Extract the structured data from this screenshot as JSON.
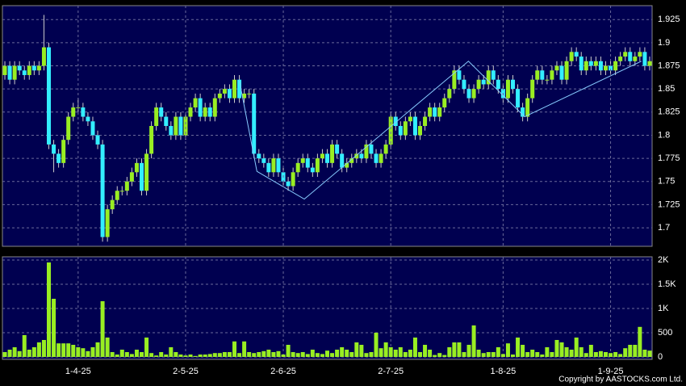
{
  "chart_data": [
    {
      "type": "candlestick",
      "up_color": "#99ee22",
      "down_color": "#33eeff",
      "ylim": [
        1.68,
        1.94
      ],
      "yticks": [
        1.7,
        1.725,
        1.75,
        1.775,
        1.8,
        1.825,
        1.85,
        1.875,
        1.9,
        1.925
      ],
      "grid": true,
      "open": [
        1.865,
        1.875,
        1.86,
        1.875,
        1.87,
        1.865,
        1.875,
        1.87,
        1.875,
        1.895,
        1.79,
        1.78,
        1.77,
        1.795,
        1.82,
        1.83,
        1.83,
        1.82,
        1.815,
        1.8,
        1.79,
        1.69,
        1.72,
        1.73,
        1.74,
        1.74,
        1.75,
        1.76,
        1.77,
        1.74,
        1.78,
        1.81,
        1.83,
        1.82,
        1.81,
        1.8,
        1.82,
        1.8,
        1.82,
        1.83,
        1.84,
        1.82,
        1.83,
        1.82,
        1.84,
        1.845,
        1.85,
        1.84,
        1.86,
        1.84,
        1.845,
        1.845,
        1.78,
        1.775,
        1.77,
        1.76,
        1.775,
        1.76,
        1.75,
        1.745,
        1.76,
        1.77,
        1.775,
        1.765,
        1.76,
        1.775,
        1.78,
        1.77,
        1.79,
        1.78,
        1.765,
        1.77,
        1.775,
        1.78,
        1.775,
        1.79,
        1.78,
        1.77,
        1.78,
        1.79,
        1.82,
        1.81,
        1.8,
        1.815,
        1.82,
        1.8,
        1.81,
        1.82,
        1.83,
        1.82,
        1.83,
        1.84,
        1.85,
        1.87,
        1.86,
        1.85,
        1.84,
        1.85,
        1.86,
        1.855,
        1.87,
        1.86,
        1.85,
        1.84,
        1.86,
        1.85,
        1.83,
        1.82,
        1.84,
        1.86,
        1.87,
        1.86,
        1.86,
        1.87,
        1.875,
        1.86,
        1.88,
        1.89,
        1.885,
        1.87,
        1.88,
        1.875,
        1.88,
        1.87,
        1.875,
        1.87,
        1.88,
        1.885,
        1.89,
        1.88,
        1.885,
        1.89,
        1.875
      ],
      "high": [
        1.88,
        1.88,
        1.88,
        1.88,
        1.875,
        1.88,
        1.88,
        1.88,
        1.93,
        1.9,
        1.795,
        1.785,
        1.8,
        1.825,
        1.835,
        1.84,
        1.835,
        1.825,
        1.82,
        1.805,
        1.795,
        1.725,
        1.735,
        1.745,
        1.745,
        1.755,
        1.765,
        1.775,
        1.775,
        1.785,
        1.815,
        1.835,
        1.835,
        1.825,
        1.815,
        1.825,
        1.825,
        1.825,
        1.835,
        1.845,
        1.845,
        1.835,
        1.835,
        1.845,
        1.85,
        1.855,
        1.855,
        1.865,
        1.865,
        1.85,
        1.85,
        1.85,
        1.785,
        1.78,
        1.775,
        1.78,
        1.78,
        1.765,
        1.755,
        1.765,
        1.775,
        1.78,
        1.78,
        1.77,
        1.78,
        1.785,
        1.785,
        1.795,
        1.795,
        1.785,
        1.775,
        1.78,
        1.785,
        1.785,
        1.795,
        1.795,
        1.785,
        1.785,
        1.795,
        1.825,
        1.825,
        1.815,
        1.82,
        1.825,
        1.825,
        1.815,
        1.825,
        1.835,
        1.835,
        1.835,
        1.845,
        1.855,
        1.875,
        1.875,
        1.865,
        1.855,
        1.855,
        1.865,
        1.865,
        1.875,
        1.875,
        1.865,
        1.855,
        1.865,
        1.865,
        1.855,
        1.835,
        1.845,
        1.865,
        1.875,
        1.875,
        1.865,
        1.875,
        1.88,
        1.88,
        1.885,
        1.895,
        1.895,
        1.89,
        1.885,
        1.885,
        1.885,
        1.885,
        1.88,
        1.88,
        1.885,
        1.89,
        1.895,
        1.895,
        1.89,
        1.895,
        1.895,
        1.885
      ],
      "low": [
        1.86,
        1.855,
        1.855,
        1.865,
        1.86,
        1.86,
        1.865,
        1.865,
        1.87,
        1.785,
        1.76,
        1.765,
        1.765,
        1.79,
        1.815,
        1.825,
        1.815,
        1.81,
        1.795,
        1.785,
        1.685,
        1.685,
        1.715,
        1.725,
        1.735,
        1.735,
        1.745,
        1.755,
        1.735,
        1.735,
        1.775,
        1.805,
        1.815,
        1.805,
        1.795,
        1.795,
        1.795,
        1.795,
        1.815,
        1.825,
        1.815,
        1.815,
        1.815,
        1.815,
        1.835,
        1.84,
        1.835,
        1.835,
        1.835,
        1.835,
        1.84,
        1.775,
        1.77,
        1.765,
        1.755,
        1.755,
        1.755,
        1.745,
        1.74,
        1.74,
        1.755,
        1.765,
        1.76,
        1.755,
        1.755,
        1.77,
        1.765,
        1.765,
        1.775,
        1.76,
        1.76,
        1.765,
        1.77,
        1.77,
        1.77,
        1.775,
        1.765,
        1.765,
        1.775,
        1.785,
        1.805,
        1.795,
        1.795,
        1.81,
        1.795,
        1.795,
        1.805,
        1.815,
        1.815,
        1.815,
        1.825,
        1.835,
        1.845,
        1.855,
        1.845,
        1.835,
        1.835,
        1.845,
        1.85,
        1.85,
        1.855,
        1.845,
        1.835,
        1.835,
        1.845,
        1.825,
        1.815,
        1.815,
        1.835,
        1.855,
        1.855,
        1.855,
        1.855,
        1.865,
        1.855,
        1.855,
        1.875,
        1.88,
        1.865,
        1.865,
        1.87,
        1.87,
        1.865,
        1.865,
        1.865,
        1.865,
        1.875,
        1.88,
        1.875,
        1.875,
        1.88,
        1.87,
        1.87
      ],
      "close": [
        1.875,
        1.86,
        1.875,
        1.87,
        1.865,
        1.875,
        1.87,
        1.875,
        1.895,
        1.79,
        1.78,
        1.77,
        1.795,
        1.82,
        1.83,
        1.83,
        1.82,
        1.815,
        1.8,
        1.79,
        1.69,
        1.72,
        1.73,
        1.74,
        1.74,
        1.75,
        1.76,
        1.77,
        1.74,
        1.78,
        1.81,
        1.83,
        1.82,
        1.81,
        1.8,
        1.82,
        1.8,
        1.82,
        1.83,
        1.84,
        1.82,
        1.83,
        1.82,
        1.84,
        1.845,
        1.85,
        1.84,
        1.86,
        1.84,
        1.845,
        1.845,
        1.78,
        1.775,
        1.77,
        1.76,
        1.775,
        1.76,
        1.75,
        1.745,
        1.76,
        1.77,
        1.775,
        1.765,
        1.76,
        1.775,
        1.78,
        1.77,
        1.79,
        1.78,
        1.765,
        1.77,
        1.775,
        1.78,
        1.775,
        1.79,
        1.78,
        1.77,
        1.78,
        1.79,
        1.82,
        1.81,
        1.8,
        1.815,
        1.82,
        1.8,
        1.81,
        1.82,
        1.83,
        1.82,
        1.83,
        1.84,
        1.85,
        1.87,
        1.86,
        1.85,
        1.84,
        1.85,
        1.86,
        1.855,
        1.87,
        1.86,
        1.85,
        1.84,
        1.86,
        1.85,
        1.83,
        1.82,
        1.84,
        1.86,
        1.87,
        1.86,
        1.86,
        1.87,
        1.875,
        1.86,
        1.88,
        1.89,
        1.885,
        1.87,
        1.88,
        1.875,
        1.88,
        1.87,
        1.875,
        1.87,
        1.88,
        1.885,
        1.89,
        1.88,
        1.885,
        1.89,
        1.875,
        1.88
      ],
      "trend_line": {
        "color": "#88ccff",
        "x": [
          48,
          51.6,
          61.3,
          94.9,
          106.4,
          130.3
        ],
        "y": [
          1.859,
          1.761,
          1.731,
          1.88,
          1.82,
          1.88
        ]
      }
    },
    {
      "type": "bar",
      "color": "#99ee22",
      "ylim": [
        0,
        2000
      ],
      "yticks": [
        0,
        500,
        {
          "value": 1000,
          "label": "1K"
        },
        {
          "value": 1500,
          "label": "1.5K"
        },
        {
          "value": 2000,
          "label": "2K"
        }
      ],
      "grid": true,
      "categories": [
        null,
        null,
        null,
        null,
        null,
        null,
        null,
        null,
        null,
        null,
        null,
        null,
        null,
        null,
        null,
        "1-4-25",
        null,
        null,
        null,
        null,
        null,
        null,
        null,
        null,
        null,
        null,
        null,
        null,
        null,
        null,
        null,
        null,
        null,
        null,
        null,
        null,
        null,
        "2-5-25",
        null,
        null,
        null,
        null,
        null,
        null,
        null,
        null,
        null,
        null,
        null,
        null,
        null,
        null,
        null,
        null,
        null,
        null,
        null,
        "2-6-25",
        null,
        null,
        null,
        null,
        null,
        null,
        null,
        null,
        null,
        null,
        null,
        null,
        null,
        null,
        null,
        null,
        null,
        null,
        null,
        null,
        null,
        "2-7-25",
        null,
        null,
        null,
        null,
        null,
        null,
        null,
        null,
        null,
        null,
        null,
        null,
        null,
        null,
        null,
        null,
        null,
        null,
        null,
        null,
        null,
        null,
        "1-8-25",
        null,
        null,
        null,
        null,
        null,
        null,
        null,
        null,
        null,
        null,
        null,
        null,
        null,
        null,
        null,
        null,
        null,
        null,
        null,
        null,
        null,
        "1-9-25",
        null,
        null,
        null,
        null,
        null,
        null,
        null,
        null
      ],
      "values": [
        100,
        150,
        200,
        120,
        450,
        150,
        200,
        300,
        350,
        1950,
        1200,
        280,
        280,
        280,
        250,
        200,
        180,
        120,
        200,
        300,
        1150,
        400,
        100,
        50,
        150,
        100,
        60,
        150,
        100,
        400,
        80,
        30,
        100,
        50,
        200,
        100,
        50,
        30,
        50,
        20,
        50,
        50,
        60,
        80,
        80,
        100,
        100,
        320,
        80,
        320,
        100,
        80,
        100,
        120,
        150,
        100,
        120,
        50,
        250,
        100,
        80,
        100,
        60,
        150,
        80,
        60,
        130,
        80,
        150,
        200,
        150,
        100,
        300,
        250,
        80,
        100,
        500,
        180,
        300,
        200,
        150,
        200,
        100,
        150,
        400,
        100,
        250,
        150,
        40,
        80,
        40,
        200,
        300,
        300,
        100,
        250,
        650,
        150,
        80,
        100,
        100,
        200,
        60,
        280,
        50,
        400,
        250,
        100,
        150,
        100,
        50,
        200,
        100,
        350,
        300,
        200,
        150,
        400,
        200,
        80,
        250,
        100,
        120,
        100,
        80,
        100,
        60,
        180,
        250,
        250,
        620,
        150,
        130
      ]
    }
  ],
  "copyright": "Copyright by AASTOCKS.com Ltd."
}
